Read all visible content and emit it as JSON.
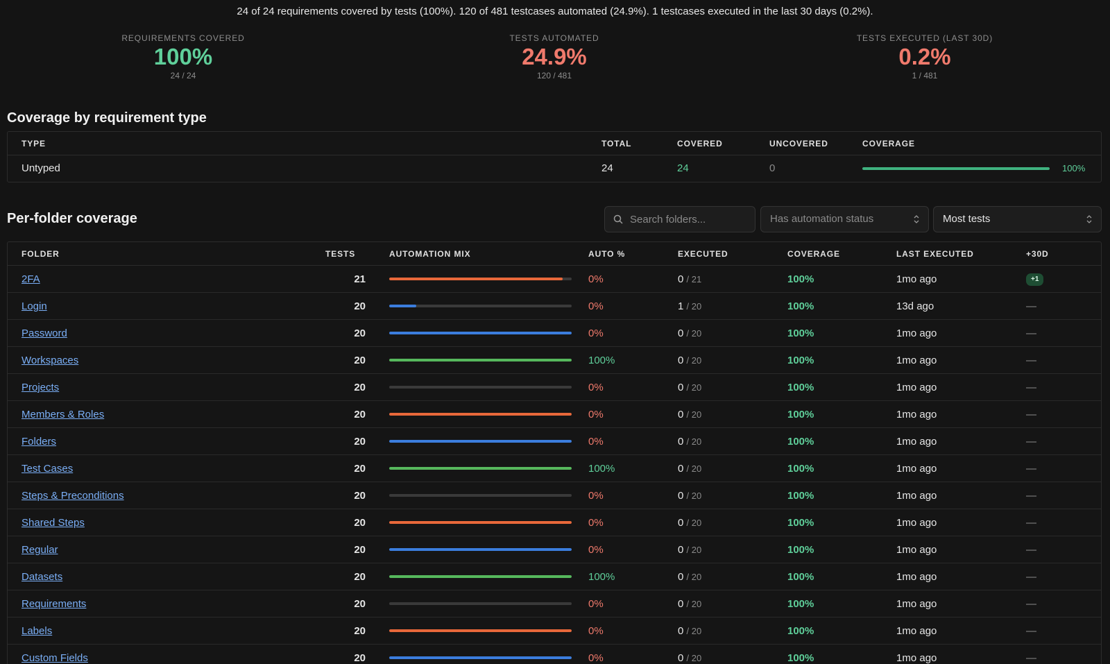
{
  "summary": "24 of 24 requirements covered by tests (100%). 120 of 481 testcases automated (24.9%). 1 testcases executed in the last 30 days (0.2%).",
  "kpis": [
    {
      "label": "REQUIREMENTS COVERED",
      "value": "100%",
      "sub": "24 / 24",
      "tone": "green"
    },
    {
      "label": "TESTS AUTOMATED",
      "value": "24.9%",
      "sub": "120 / 481",
      "tone": "red"
    },
    {
      "label": "TESTS EXECUTED (LAST 30D)",
      "value": "0.2%",
      "sub": "1 / 481",
      "tone": "red"
    }
  ],
  "type_section": {
    "title": "Coverage by requirement type",
    "headers": {
      "type": "TYPE",
      "total": "TOTAL",
      "covered": "COVERED",
      "uncovered": "UNCOVERED",
      "coverage": "COVERAGE"
    },
    "rows": [
      {
        "type": "Untyped",
        "total": "24",
        "covered": "24",
        "uncovered": "0",
        "coverage_label": "100%",
        "coverage_fraction": 1.0
      }
    ]
  },
  "folder_section": {
    "title": "Per-folder coverage",
    "search_placeholder": "Search folders...",
    "filter_value": "Has automation status",
    "sort_value": "Most tests",
    "headers": {
      "folder": "FOLDER",
      "tests": "TESTS",
      "mix": "AUTOMATION MIX",
      "auto": "AUTO %",
      "executed": "EXECUTED",
      "coverage": "COVERAGE",
      "last": "LAST EXECUTED",
      "plus30": "+30D"
    },
    "rows": [
      {
        "folder": "2FA",
        "tests": "21",
        "mix_color": "#e8683a",
        "mix_fraction": 0.95,
        "auto": "0%",
        "auto_tone": "red",
        "executed": "0",
        "executed_total": "/ 21",
        "coverage": "100%",
        "last": "1mo ago",
        "plus30": "+1"
      },
      {
        "folder": "Login",
        "tests": "20",
        "mix_color": "#3b7ddd",
        "mix_fraction": 0.15,
        "auto": "0%",
        "auto_tone": "red",
        "executed": "1",
        "executed_total": "/ 20",
        "coverage": "100%",
        "last": "13d ago",
        "plus30": "—"
      },
      {
        "folder": "Password",
        "tests": "20",
        "mix_color": "#3b7ddd",
        "mix_fraction": 1.0,
        "auto": "0%",
        "auto_tone": "red",
        "executed": "0",
        "executed_total": "/ 20",
        "coverage": "100%",
        "last": "1mo ago",
        "plus30": "—"
      },
      {
        "folder": "Workspaces",
        "tests": "20",
        "mix_color": "#56b85c",
        "mix_fraction": 1.0,
        "auto": "100%",
        "auto_tone": "green",
        "executed": "0",
        "executed_total": "/ 20",
        "coverage": "100%",
        "last": "1mo ago",
        "plus30": "—"
      },
      {
        "folder": "Projects",
        "tests": "20",
        "mix_color": "#3a3a3a",
        "mix_fraction": 0.0,
        "auto": "0%",
        "auto_tone": "red",
        "executed": "0",
        "executed_total": "/ 20",
        "coverage": "100%",
        "last": "1mo ago",
        "plus30": "—"
      },
      {
        "folder": "Members & Roles",
        "tests": "20",
        "mix_color": "#e8683a",
        "mix_fraction": 1.0,
        "auto": "0%",
        "auto_tone": "red",
        "executed": "0",
        "executed_total": "/ 20",
        "coverage": "100%",
        "last": "1mo ago",
        "plus30": "—"
      },
      {
        "folder": "Folders",
        "tests": "20",
        "mix_color": "#3b7ddd",
        "mix_fraction": 1.0,
        "auto": "0%",
        "auto_tone": "red",
        "executed": "0",
        "executed_total": "/ 20",
        "coverage": "100%",
        "last": "1mo ago",
        "plus30": "—"
      },
      {
        "folder": "Test Cases",
        "tests": "20",
        "mix_color": "#56b85c",
        "mix_fraction": 1.0,
        "auto": "100%",
        "auto_tone": "green",
        "executed": "0",
        "executed_total": "/ 20",
        "coverage": "100%",
        "last": "1mo ago",
        "plus30": "—"
      },
      {
        "folder": "Steps & Preconditions",
        "tests": "20",
        "mix_color": "#3a3a3a",
        "mix_fraction": 0.0,
        "auto": "0%",
        "auto_tone": "red",
        "executed": "0",
        "executed_total": "/ 20",
        "coverage": "100%",
        "last": "1mo ago",
        "plus30": "—"
      },
      {
        "folder": "Shared Steps",
        "tests": "20",
        "mix_color": "#e8683a",
        "mix_fraction": 1.0,
        "auto": "0%",
        "auto_tone": "red",
        "executed": "0",
        "executed_total": "/ 20",
        "coverage": "100%",
        "last": "1mo ago",
        "plus30": "—"
      },
      {
        "folder": "Regular",
        "tests": "20",
        "mix_color": "#3b7ddd",
        "mix_fraction": 1.0,
        "auto": "0%",
        "auto_tone": "red",
        "executed": "0",
        "executed_total": "/ 20",
        "coverage": "100%",
        "last": "1mo ago",
        "plus30": "—"
      },
      {
        "folder": "Datasets",
        "tests": "20",
        "mix_color": "#56b85c",
        "mix_fraction": 1.0,
        "auto": "100%",
        "auto_tone": "green",
        "executed": "0",
        "executed_total": "/ 20",
        "coverage": "100%",
        "last": "1mo ago",
        "plus30": "—"
      },
      {
        "folder": "Requirements",
        "tests": "20",
        "mix_color": "#3a3a3a",
        "mix_fraction": 0.0,
        "auto": "0%",
        "auto_tone": "red",
        "executed": "0",
        "executed_total": "/ 20",
        "coverage": "100%",
        "last": "1mo ago",
        "plus30": "—"
      },
      {
        "folder": "Labels",
        "tests": "20",
        "mix_color": "#e8683a",
        "mix_fraction": 1.0,
        "auto": "0%",
        "auto_tone": "red",
        "executed": "0",
        "executed_total": "/ 20",
        "coverage": "100%",
        "last": "1mo ago",
        "plus30": "—"
      },
      {
        "folder": "Custom Fields",
        "tests": "20",
        "mix_color": "#3b7ddd",
        "mix_fraction": 1.0,
        "auto": "0%",
        "auto_tone": "red",
        "executed": "0",
        "executed_total": "/ 20",
        "coverage": "100%",
        "last": "1mo ago",
        "plus30": "—"
      }
    ]
  }
}
